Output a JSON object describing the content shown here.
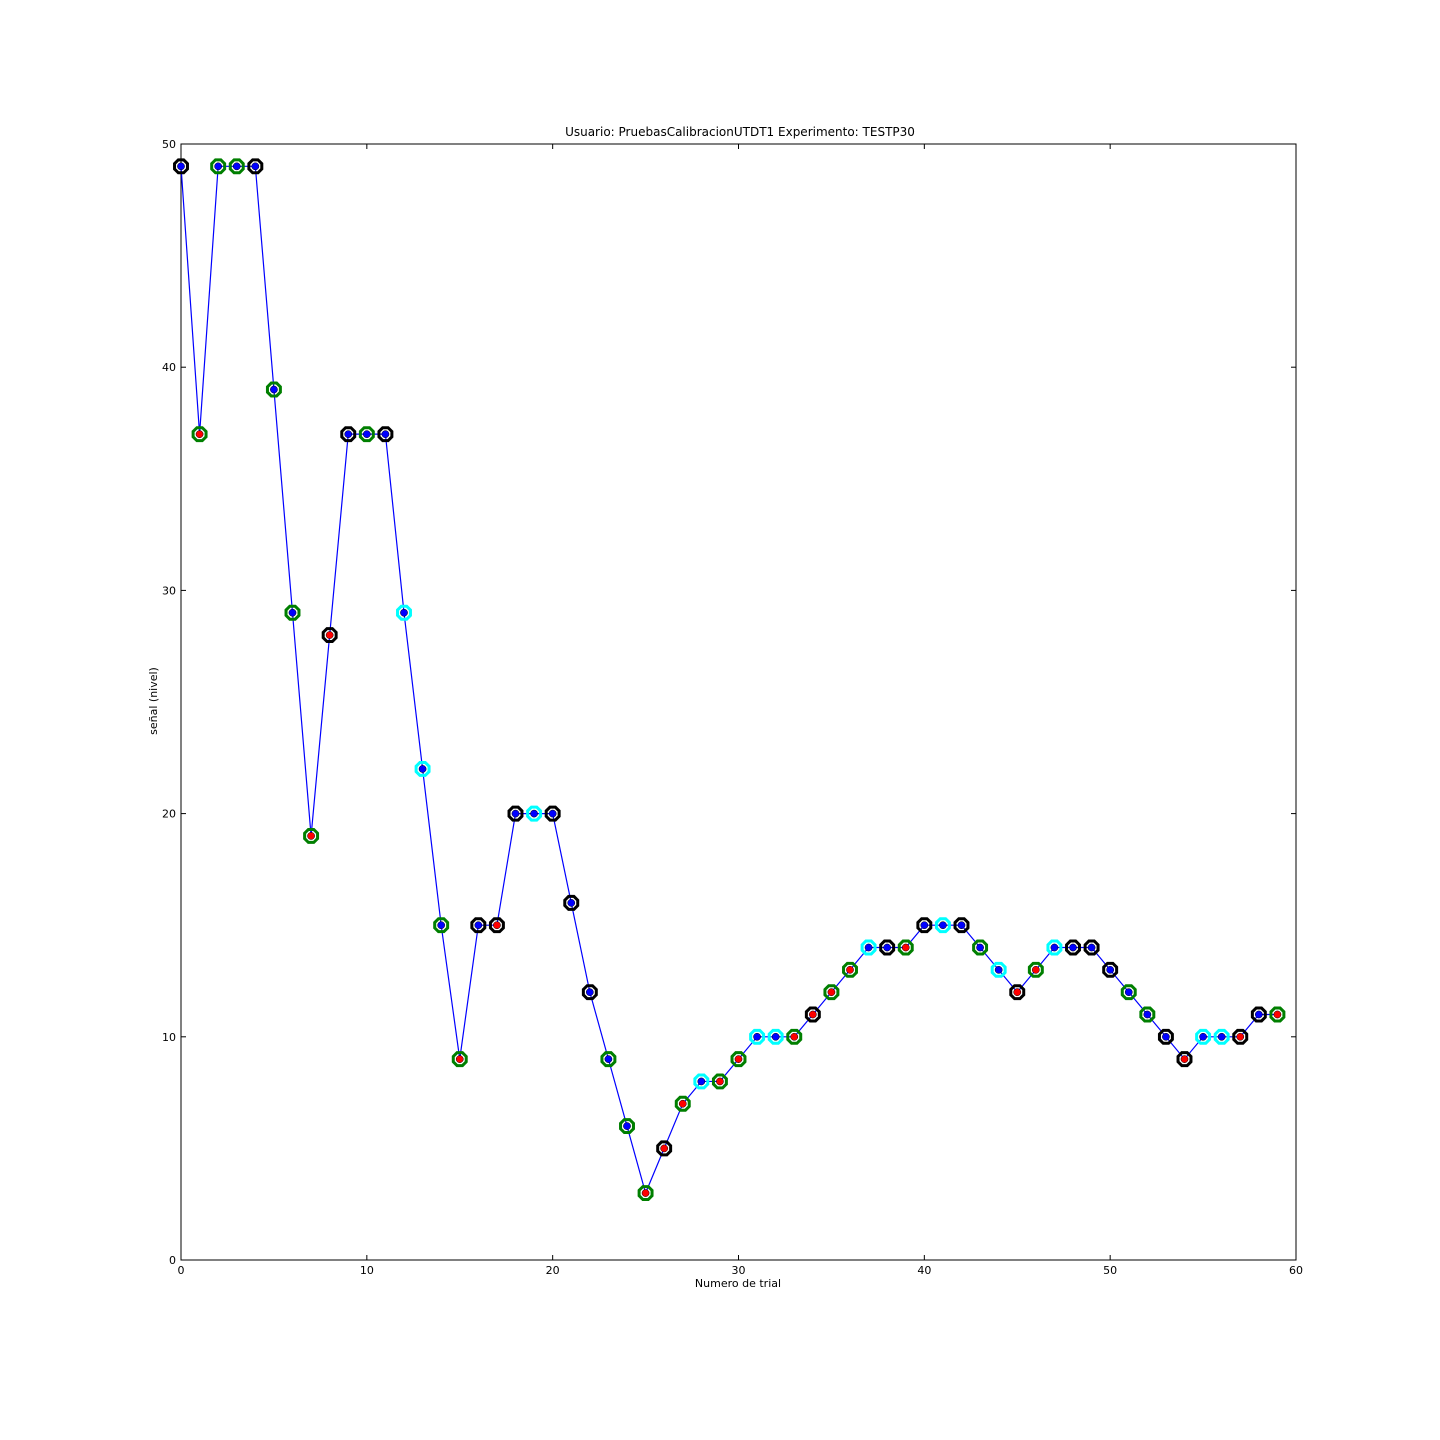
{
  "chart_data": {
    "type": "line",
    "title": "Usuario: PruebasCalibracionUTDT1 Experimento: TESTP30",
    "xlabel": "Numero de trial",
    "ylabel": "señal (nivel)",
    "xlim": [
      0,
      60
    ],
    "ylim": [
      0,
      50
    ],
    "xticks": [
      0,
      10,
      20,
      30,
      40,
      50,
      60
    ],
    "yticks": [
      0,
      10,
      20,
      30,
      40,
      50
    ],
    "grid": false,
    "colors": {
      "line": "#0000ff",
      "ring_k": "#000000",
      "ring_g": "#007f00",
      "ring_c": "#00ffff",
      "dot_b": "#0000ff",
      "dot_r": "#ff0000"
    },
    "x": [
      0,
      1,
      2,
      3,
      4,
      5,
      6,
      7,
      8,
      9,
      10,
      11,
      12,
      13,
      14,
      15,
      16,
      17,
      18,
      19,
      20,
      21,
      22,
      23,
      24,
      25,
      26,
      27,
      28,
      29,
      30,
      31,
      32,
      33,
      34,
      35,
      36,
      37,
      38,
      39,
      40,
      41,
      42,
      43,
      44,
      45,
      46,
      47,
      48,
      49,
      50,
      51,
      52,
      53,
      54,
      55,
      56,
      57,
      58,
      59
    ],
    "y": [
      49,
      37,
      49,
      49,
      49,
      39,
      29,
      19,
      28,
      37,
      37,
      37,
      29,
      22,
      15,
      9,
      15,
      15,
      20,
      20,
      20,
      16,
      12,
      9,
      6,
      3,
      5,
      7,
      8,
      8,
      9,
      10,
      10,
      10,
      11,
      12,
      13,
      14,
      14,
      14,
      15,
      15,
      15,
      14,
      13,
      12,
      13,
      14,
      14,
      14,
      13,
      12,
      11,
      10,
      9,
      10,
      10,
      10,
      11,
      11
    ],
    "ring_colors": [
      "k",
      "g",
      "g",
      "g",
      "k",
      "g",
      "g",
      "g",
      "k",
      "k",
      "g",
      "k",
      "c",
      "c",
      "g",
      "g",
      "k",
      "k",
      "k",
      "c",
      "k",
      "k",
      "k",
      "g",
      "g",
      "g",
      "k",
      "g",
      "c",
      "g",
      "g",
      "c",
      "c",
      "g",
      "k",
      "g",
      "g",
      "c",
      "k",
      "g",
      "k",
      "c",
      "k",
      "g",
      "c",
      "k",
      "g",
      "c",
      "k",
      "k",
      "k",
      "g",
      "g",
      "k",
      "k",
      "c",
      "c",
      "k",
      "k",
      "g"
    ],
    "dot_colors": [
      "b",
      "r",
      "b",
      "b",
      "b",
      "b",
      "b",
      "r",
      "r",
      "b",
      "b",
      "b",
      "b",
      "b",
      "b",
      "r",
      "b",
      "r",
      "b",
      "b",
      "b",
      "b",
      "b",
      "b",
      "b",
      "r",
      "r",
      "r",
      "b",
      "r",
      "r",
      "b",
      "b",
      "r",
      "r",
      "r",
      "r",
      "b",
      "b",
      "r",
      "b",
      "b",
      "b",
      "b",
      "b",
      "r",
      "r",
      "b",
      "b",
      "b",
      "b",
      "b",
      "b",
      "b",
      "r",
      "b",
      "b",
      "r",
      "b",
      "r"
    ]
  }
}
